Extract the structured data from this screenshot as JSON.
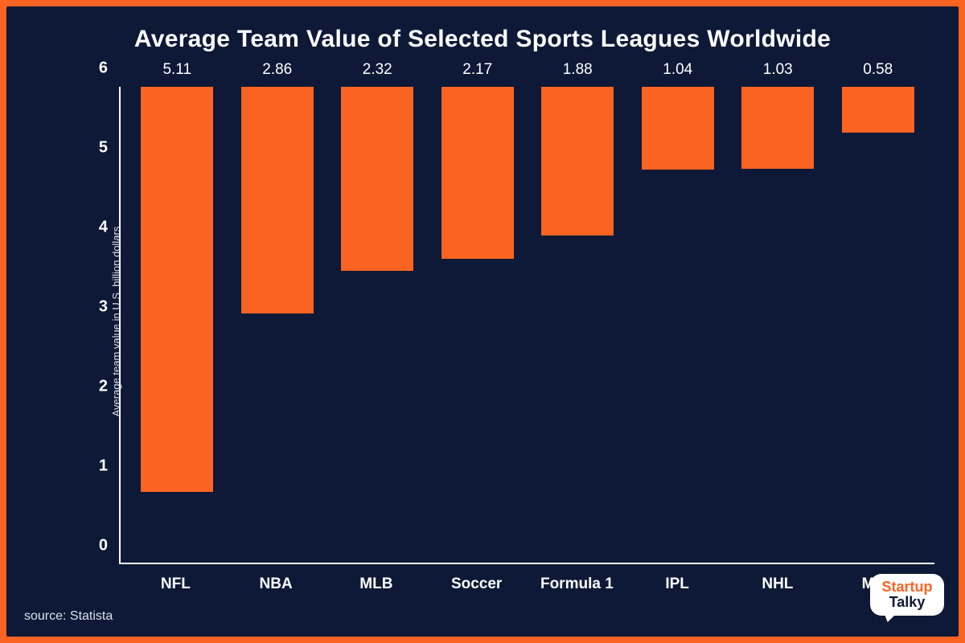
{
  "chart": {
    "type": "bar",
    "title": "Average Team Value of Selected Sports Leagues Worldwide",
    "ylabel": "Average team value in U.S. billion dollars",
    "categories": [
      "NFL",
      "NBA",
      "MLB",
      "Soccer",
      "Formula 1",
      "IPL",
      "NHL",
      "MLS"
    ],
    "values": [
      5.11,
      2.86,
      2.32,
      2.17,
      1.88,
      1.04,
      1.03,
      0.58
    ],
    "value_labels": [
      "5.11",
      "2.86",
      "2.32",
      "2.17",
      "1.88",
      "1.04",
      "1.03",
      "0.58"
    ],
    "bar_color": "#fa6321",
    "background_color": "#0d1936",
    "frame_border_color": "#fa6321",
    "axis_color": "#ffffff",
    "text_color": "#ffffff",
    "secondary_text_color": "#dbe0ea",
    "ylim": [
      0,
      6
    ],
    "ytick_step": 1,
    "yticks": [
      0,
      1,
      2,
      3,
      4,
      5,
      6
    ],
    "bar_width_ratio": 0.72,
    "title_fontsize": 30,
    "title_fontweight": 800,
    "tick_fontsize": 20,
    "value_label_fontsize": 19,
    "category_fontsize": 19,
    "ylabel_fontsize": 13
  },
  "source": "source: Statista",
  "logo": {
    "line1": "Startup",
    "line2": "Talky",
    "bubble_bg": "#ffffff",
    "line1_color": "#fa6321",
    "line2_color": "#0d1936"
  }
}
